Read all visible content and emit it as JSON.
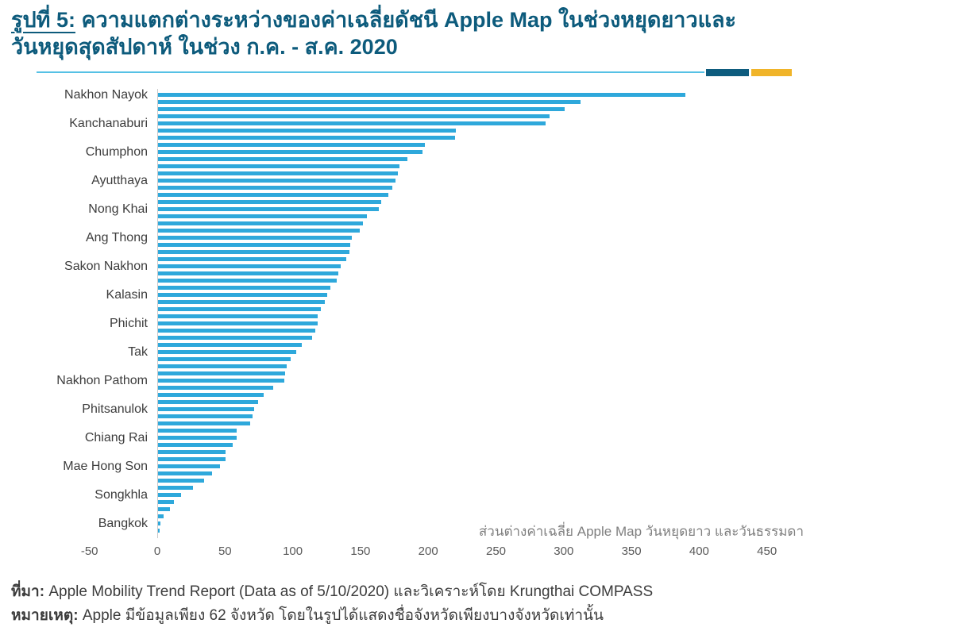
{
  "header": {
    "figure_label": "รูปที่ 5:",
    "title_rest_line1": " ความแตกต่างระหว่างของค่าเฉลี่ยดัชนี Apple Map ในช่วงหยุดยาวและ",
    "title_line2": "วันหยุดสุดสัปดาห์ ในช่วง ก.ค. - ส.ค. 2020",
    "accent_thin_color": "#56C1E5",
    "accent_dark_color": "#0E5C7E",
    "accent_gold_color": "#F0B429"
  },
  "chart_data": {
    "type": "bar",
    "orientation": "horizontal",
    "annotation": "ส่วนต่างค่าเฉลี่ย Apple Map วันหยุดยาว และวันธรรมดา",
    "xlim": [
      -50,
      450
    ],
    "x_ticks": [
      "-50",
      "0",
      "50",
      "100",
      "150",
      "200",
      "250",
      "300",
      "350",
      "400",
      "450"
    ],
    "grid": false,
    "legend": "none",
    "bar_color": "#2EA8DB",
    "bar_count": 62,
    "label_every_n_bars": 4,
    "visible_labels": [
      "Nakhon Nayok",
      "Kanchanaburi",
      "Chumphon",
      "Ayutthaya",
      "Nong Khai",
      "Ang Thong",
      "Sakon Nakhon",
      "Kalasin",
      "Phichit",
      "Tak",
      "Nakhon Pathom",
      "Phitsanulok",
      "Chiang Rai",
      "Mae Hong Son",
      "Songkhla",
      "Bangkok"
    ],
    "values": [
      389,
      312,
      300,
      289,
      286,
      220,
      219,
      197,
      195,
      184,
      178,
      177,
      175,
      173,
      170,
      165,
      163,
      154,
      151,
      149,
      143,
      142,
      141,
      139,
      135,
      133,
      132,
      127,
      125,
      123,
      120,
      118,
      118,
      116,
      114,
      106,
      102,
      98,
      95,
      94,
      93,
      85,
      78,
      74,
      71,
      70,
      68,
      58,
      58,
      55,
      50,
      50,
      46,
      40,
      34,
      26,
      17,
      12,
      9,
      4,
      2,
      1
    ]
  },
  "footer": {
    "source_label": "ที่มา:",
    "source_text": " Apple Mobility Trend Report (Data as of 5/10/2020) และวิเคราะห์โดย Krungthai COMPASS",
    "note_label": "หมายเหตุ:",
    "note_text": " Apple มีข้อมูลเพียง 62 จังหวัด โดยในรูปได้แสดงชื่อจังหวัดเพียงบางจังหวัดเท่านั้น"
  }
}
